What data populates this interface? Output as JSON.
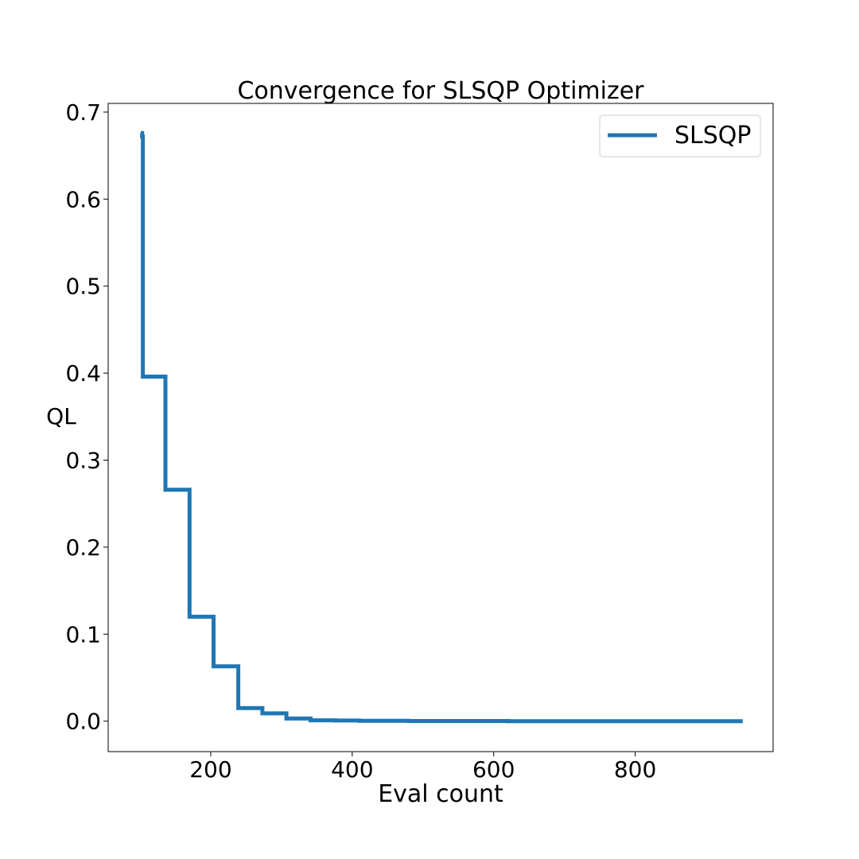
{
  "chart_data": {
    "type": "line",
    "title": "Convergence for SLSQP Optimizer",
    "xlabel": "Eval count",
    "ylabel": "QL",
    "xlim": [
      55,
      995
    ],
    "ylim": [
      -0.035,
      0.71
    ],
    "xticks": [
      200,
      400,
      600,
      800
    ],
    "xtick_labels": [
      "200",
      "400",
      "600",
      "800"
    ],
    "yticks": [
      0.0,
      0.1,
      0.2,
      0.3,
      0.4,
      0.5,
      0.6,
      0.7
    ],
    "ytick_labels": [
      "0.0",
      "0.1",
      "0.2",
      "0.3",
      "0.4",
      "0.5",
      "0.6",
      "0.7"
    ],
    "grid": false,
    "legend_position": "top-right",
    "series": [
      {
        "name": "SLSQP",
        "color": "#1f77b4",
        "x": [
          101,
          103,
          103,
          104,
          104,
          136,
          136,
          170,
          170,
          204,
          204,
          239,
          239,
          273,
          273,
          307,
          307,
          341,
          341,
          376,
          376,
          410,
          410,
          480,
          480,
          620,
          620,
          952
        ],
        "y": [
          0.676,
          0.676,
          0.672,
          0.672,
          0.396,
          0.396,
          0.266,
          0.266,
          0.12,
          0.12,
          0.063,
          0.063,
          0.015,
          0.015,
          0.009,
          0.009,
          0.003,
          0.003,
          0.001,
          0.001,
          0.0007,
          0.0007,
          0.0004,
          0.0004,
          0.0002,
          0.0002,
          0.0,
          0.0
        ]
      }
    ]
  }
}
